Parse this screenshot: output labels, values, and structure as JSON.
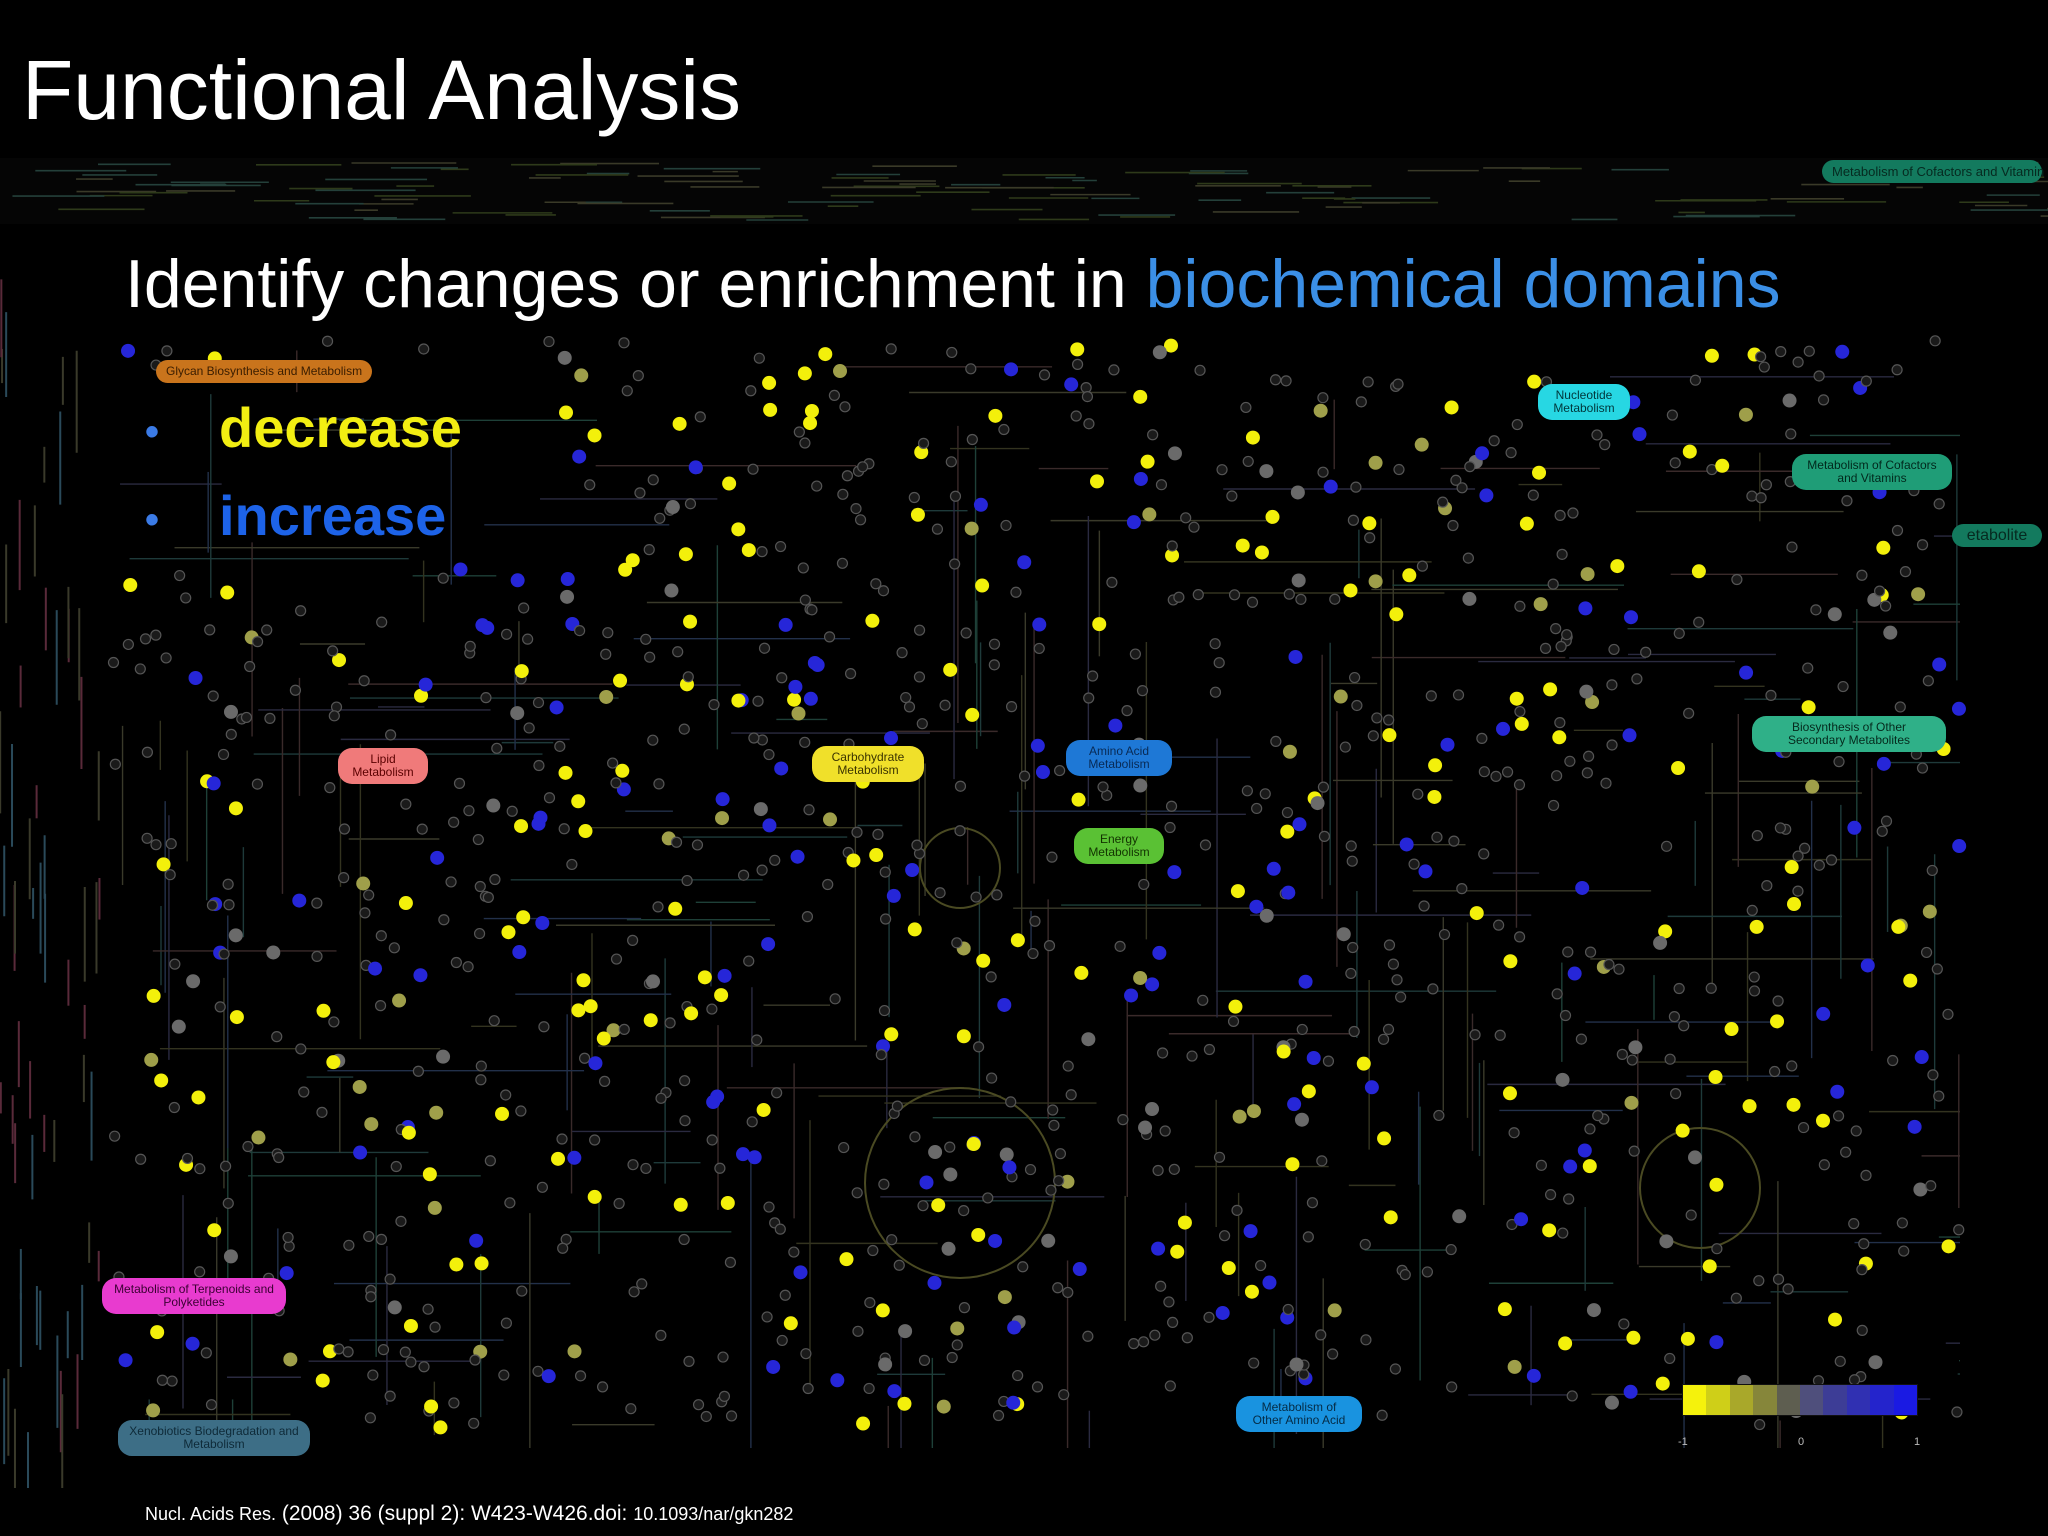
{
  "slide": {
    "title": "Functional Analysis",
    "subtitle_prefix": "Identify changes or enrichment in ",
    "subtitle_highlight": "biochemical domains",
    "bullets": [
      {
        "label": "decrease"
      },
      {
        "label": "increase"
      }
    ],
    "citation_journal": "Nucl. Acids Res.",
    "citation_mid": " (2008) 36 (suppl 2): W423-W426.doi: ",
    "citation_doi": "10.1093/nar/gkn282"
  },
  "pathway_map": {
    "categories": [
      {
        "label": "Glycan Biosynthesis and Metabolism",
        "color": "#c9741c"
      },
      {
        "label": "Lipid Metabolism",
        "color": "#f07a7a"
      },
      {
        "label": "Carbohydrate Metabolism",
        "color": "#f0e02a"
      },
      {
        "label": "Amino Acid Metabolism",
        "color": "#1e78d6"
      },
      {
        "label": "Energy Metabolism",
        "color": "#5ac134"
      },
      {
        "label": "Nucleotide Metabolism",
        "color": "#27d7e3"
      },
      {
        "label": "Metabolism of Cofactors and Vitamins",
        "color": "#1f9d77"
      },
      {
        "label": "Biosynthesis of Other Secondary Metabolites",
        "color": "#2fb088"
      },
      {
        "label": "Metabolism of Terpenoids and Polyketides",
        "color": "#e83bcf"
      },
      {
        "label": "Xenobiotics Biodegradation and Metabolism",
        "color": "#3d6e86"
      },
      {
        "label": "Metabolism of Other Amino Acid",
        "color": "#1993e0"
      }
    ],
    "background_labels": {
      "top_cofactors": "Metabolism of Cofactors and Vitamin",
      "right_edge": "etabolite"
    },
    "colorbar": {
      "colors": [
        "#f5f20c",
        "#cfcf18",
        "#a9a82a",
        "#86863a",
        "#5e5e50",
        "#4f4f7c",
        "#3d3d96",
        "#3030b2",
        "#2424cc",
        "#1a1ae3"
      ],
      "tick_labels": [
        "-1",
        "0",
        "1"
      ]
    },
    "node_colors": {
      "decrease": "#f3f00b",
      "increase": "#2626d8",
      "mixed_light": "#9f9f4a",
      "mixed_dark": "#6a6a6a",
      "neutral": "#1a1a1a"
    }
  }
}
